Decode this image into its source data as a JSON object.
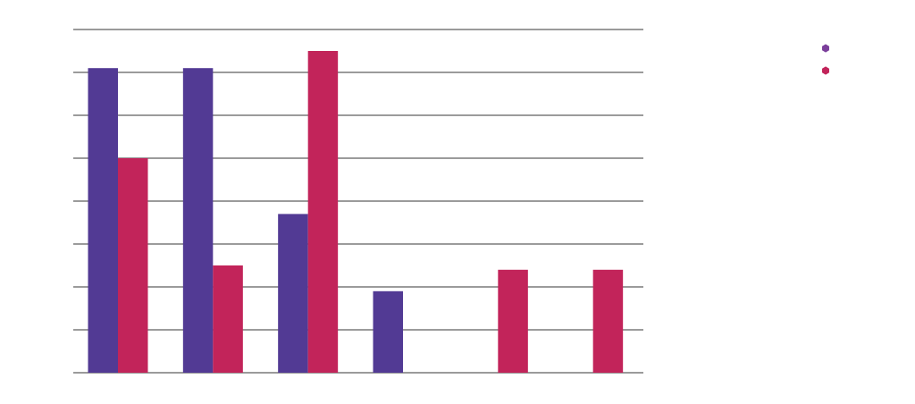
{
  "chart_data": {
    "type": "bar",
    "title": "",
    "xlabel": "",
    "ylabel": "",
    "categories": [
      "",
      "",
      "",
      "",
      "",
      ""
    ],
    "ylim": [
      0,
      8
    ],
    "grid": true,
    "gridlines": [
      0,
      1,
      2,
      3,
      4,
      5,
      6,
      7,
      8
    ],
    "legend_position": "top-right",
    "series": [
      {
        "name": "",
        "color": "#523a94",
        "legend_color": "#7b3f9b",
        "values": [
          7.1,
          7.1,
          3.7,
          1.9,
          0,
          0
        ]
      },
      {
        "name": "",
        "color": "#c2245a",
        "legend_color": "#c2245a",
        "values": [
          5.0,
          2.5,
          7.5,
          0,
          2.4,
          2.4
        ]
      }
    ]
  }
}
